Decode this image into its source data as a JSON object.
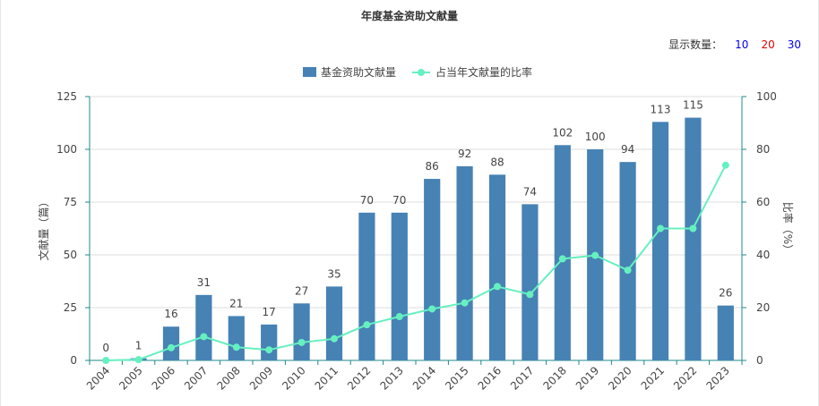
{
  "page": {
    "title": "年度基金资助文献量",
    "display_count_label": "显示数量：",
    "display_count_options": [
      {
        "label": "10",
        "color": "#0000ee"
      },
      {
        "label": "20",
        "color": "#dd0000"
      },
      {
        "label": "30",
        "color": "#0000ee"
      }
    ]
  },
  "chart_data": {
    "type": "bar",
    "categories": [
      "2004",
      "2005",
      "2006",
      "2007",
      "2008",
      "2009",
      "2010",
      "2011",
      "2012",
      "2013",
      "2014",
      "2015",
      "2016",
      "2017",
      "2018",
      "2019",
      "2020",
      "2021",
      "2022",
      "2023"
    ],
    "series": [
      {
        "name": "基金资助文献量",
        "type": "bar",
        "axis": "left",
        "color": "#4682b4",
        "values": [
          0,
          1,
          16,
          31,
          21,
          17,
          27,
          35,
          70,
          70,
          86,
          92,
          88,
          74,
          102,
          100,
          94,
          113,
          115,
          26
        ],
        "data_labels": true
      },
      {
        "name": "占当年文献量的比率",
        "type": "line",
        "axis": "right",
        "color": "#66f0c0",
        "values": [
          0,
          0.3,
          4.8,
          9,
          5,
          4,
          6.8,
          8.2,
          13.5,
          16.6,
          19.5,
          21.8,
          28,
          25,
          38.5,
          39.8,
          34.2,
          50,
          50,
          74
        ]
      }
    ],
    "ylabel": "文献量（篇）",
    "y2label": "比率（%）",
    "ylim": [
      0,
      125
    ],
    "y_ticks": [
      0,
      25,
      50,
      75,
      100,
      125
    ],
    "y2lim": [
      0,
      100
    ],
    "y2_ticks": [
      0,
      20,
      40,
      60,
      80,
      100
    ],
    "grid": true,
    "legend_position": "top-center"
  }
}
